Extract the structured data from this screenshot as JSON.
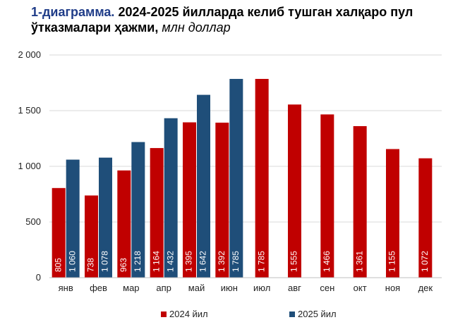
{
  "title": {
    "prefix": "1-диаграмма.",
    "line1": "2024-2025 йилларда келиб тушган халқаро пул",
    "line2": "ўтказмалари ҳажми,",
    "unit": "млн доллар"
  },
  "chart_data": {
    "type": "bar",
    "categories": [
      "янв",
      "фев",
      "мар",
      "апр",
      "май",
      "июн",
      "июл",
      "авг",
      "сен",
      "окт",
      "ноя",
      "дек"
    ],
    "series": [
      {
        "name": "2024 йил",
        "color": "#c00000",
        "values": [
          805,
          738,
          963,
          1164,
          1395,
          1392,
          1785,
          1555,
          1466,
          1361,
          1155,
          1072
        ],
        "labels": [
          "805",
          "738",
          "963",
          "1 164",
          "1 395",
          "1 392",
          "1 785",
          "1 555",
          "1 466",
          "1 361",
          "1 155",
          "1 072"
        ]
      },
      {
        "name": "2025 йил",
        "color": "#1f4e79",
        "values": [
          1060,
          1078,
          1218,
          1432,
          1642,
          1785,
          null,
          null,
          null,
          null,
          null,
          null
        ],
        "labels": [
          "1 060",
          "1 078",
          "1 218",
          "1 432",
          "1 642",
          "1 785",
          "",
          "",
          "",
          "",
          "",
          ""
        ]
      }
    ],
    "ylim": [
      0,
      2000
    ],
    "yticks": [
      0,
      500,
      1000,
      1500,
      2000
    ],
    "ytick_labels": [
      "0",
      "500",
      "1 000",
      "1 500",
      "2 000"
    ],
    "grid": true,
    "legend": "bottom-center"
  }
}
